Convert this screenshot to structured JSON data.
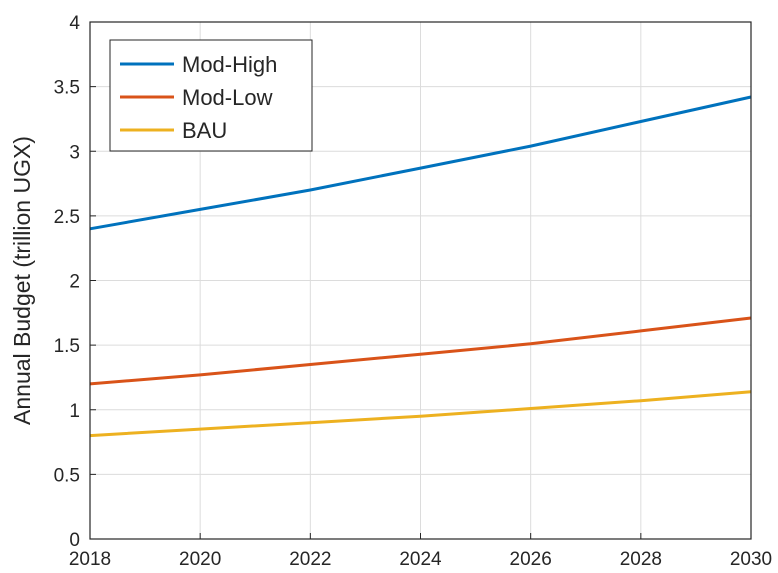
{
  "chart_data": {
    "type": "line",
    "xlabel": "",
    "ylabel": "Annual Budget (trillion UGX)",
    "xlim": [
      2018,
      2030
    ],
    "ylim": [
      0,
      4
    ],
    "xticks": [
      "2018",
      "2020",
      "2022",
      "2024",
      "2026",
      "2028",
      "2030"
    ],
    "yticks": [
      "0",
      "0.5",
      "1",
      "1.5",
      "2",
      "2.5",
      "3",
      "3.5",
      "4"
    ],
    "grid": true,
    "legend_position": "top-left",
    "x": [
      2018,
      2020,
      2022,
      2024,
      2026,
      2028,
      2030
    ],
    "series": [
      {
        "name": "Mod-High",
        "color": "#0072BD",
        "values": [
          2.4,
          2.55,
          2.7,
          2.87,
          3.04,
          3.23,
          3.42
        ]
      },
      {
        "name": "Mod-Low",
        "color": "#D95319",
        "values": [
          1.2,
          1.27,
          1.35,
          1.43,
          1.51,
          1.61,
          1.71
        ]
      },
      {
        "name": "BAU",
        "color": "#EDB120",
        "values": [
          0.8,
          0.85,
          0.9,
          0.95,
          1.01,
          1.07,
          1.14
        ]
      }
    ]
  }
}
